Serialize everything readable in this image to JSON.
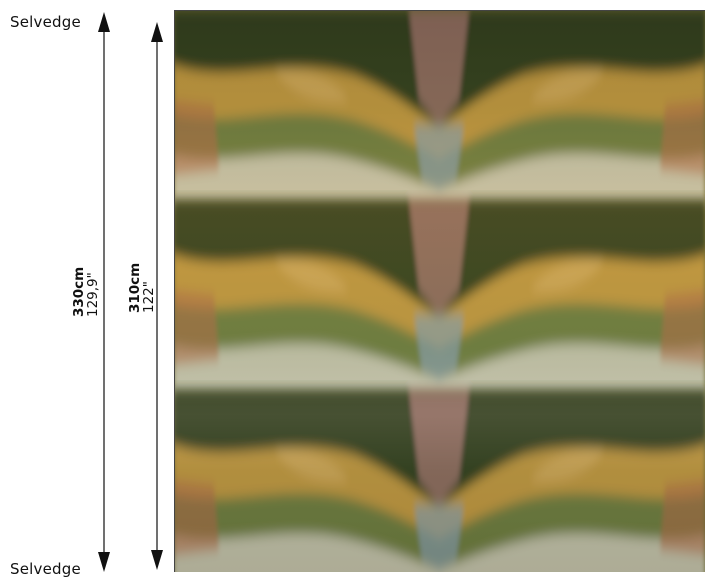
{
  "labels": {
    "selvedge_top": "Selvedge",
    "selvedge_bottom": "Selvedge"
  },
  "dimensions": {
    "outer_cm": "330cm",
    "outer_in": "129,9\"",
    "inner_cm": "310cm",
    "inner_in": "122\""
  },
  "fabric": {
    "pattern_colors": [
      "#3a3b1c",
      "#6d7a3a",
      "#c9a14a",
      "#b46a3c",
      "#d9d6c8",
      "#8aa0b8",
      "#a86a6e",
      "#4f6a46"
    ]
  }
}
